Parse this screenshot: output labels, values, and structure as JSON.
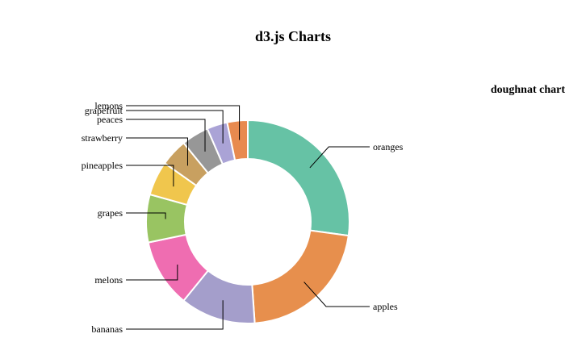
{
  "page": {
    "title": "d3.js Charts"
  },
  "chart_data": {
    "type": "pie",
    "variant": "doughnut",
    "title": "doughnat chart",
    "categories": [
      "oranges",
      "apples",
      "bananas",
      "melons",
      "grapes",
      "pineapples",
      "strawberry",
      "peaces",
      "grapefruit",
      "lemons"
    ],
    "values": [
      25,
      20,
      11,
      10,
      7,
      5,
      4,
      4,
      3,
      3
    ],
    "colors": [
      "#66c2a5",
      "#e78f4d",
      "#a49ecb",
      "#ef6db1",
      "#99c462",
      "#f0c64d",
      "#c8a060",
      "#979797",
      "#aaa3d6",
      "#e88a4f"
    ],
    "legend": "none",
    "labels": "outside with leader lines"
  }
}
